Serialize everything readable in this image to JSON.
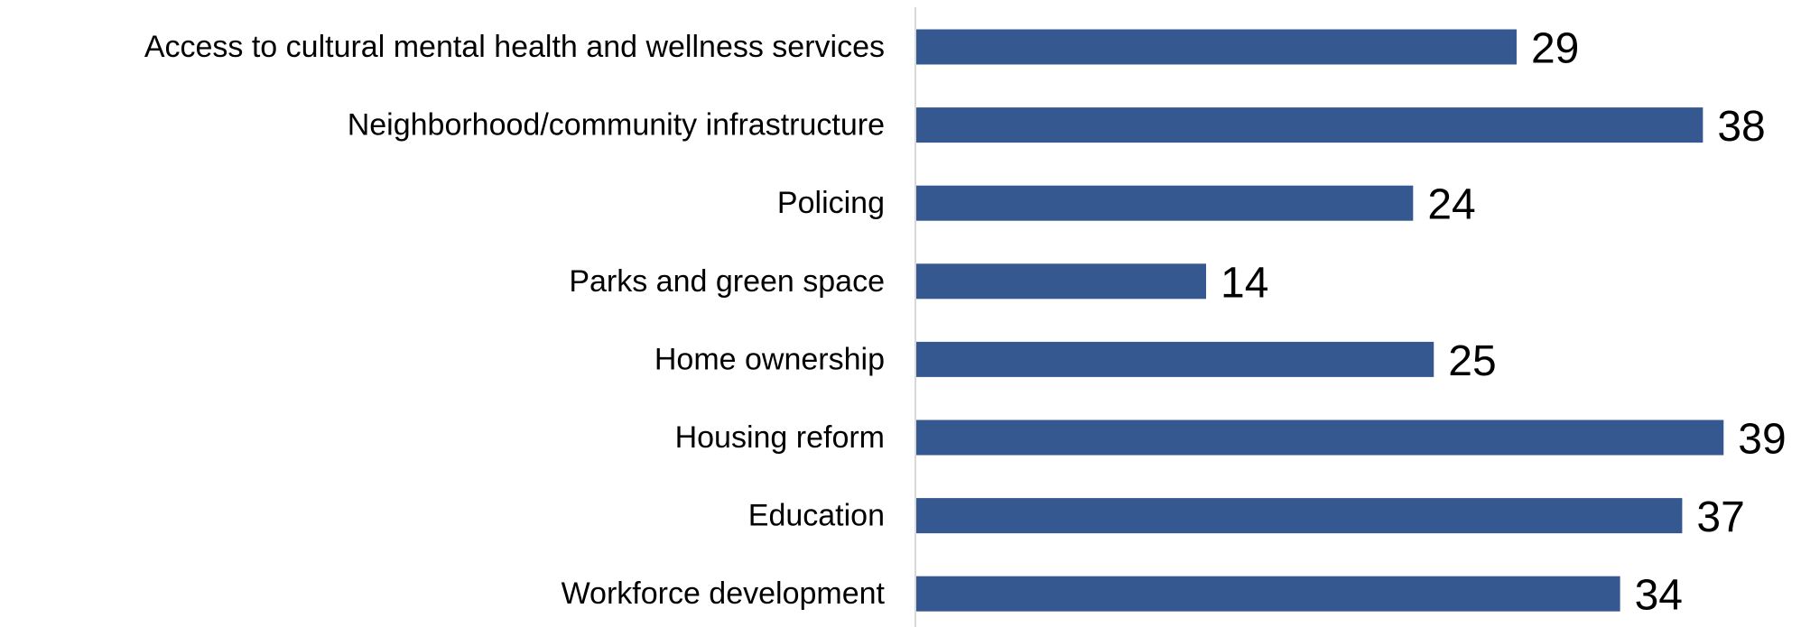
{
  "chart_data": {
    "type": "bar",
    "orientation": "horizontal",
    "title": "",
    "xlabel": "",
    "ylabel": "",
    "categories": [
      "Access to cultural mental health and wellness services",
      "Neighborhood/community infrastructure",
      "Policing",
      "Parks and green space",
      "Home ownership",
      "Housing reform",
      "Education",
      "Workforce development"
    ],
    "values": [
      29,
      38,
      24,
      14,
      25,
      39,
      37,
      34
    ],
    "xlim": [
      0,
      40
    ],
    "grid": false,
    "legend": "none",
    "bar_color": "#34588f",
    "axis_color": "#d9d9d9",
    "data_labels": true
  }
}
